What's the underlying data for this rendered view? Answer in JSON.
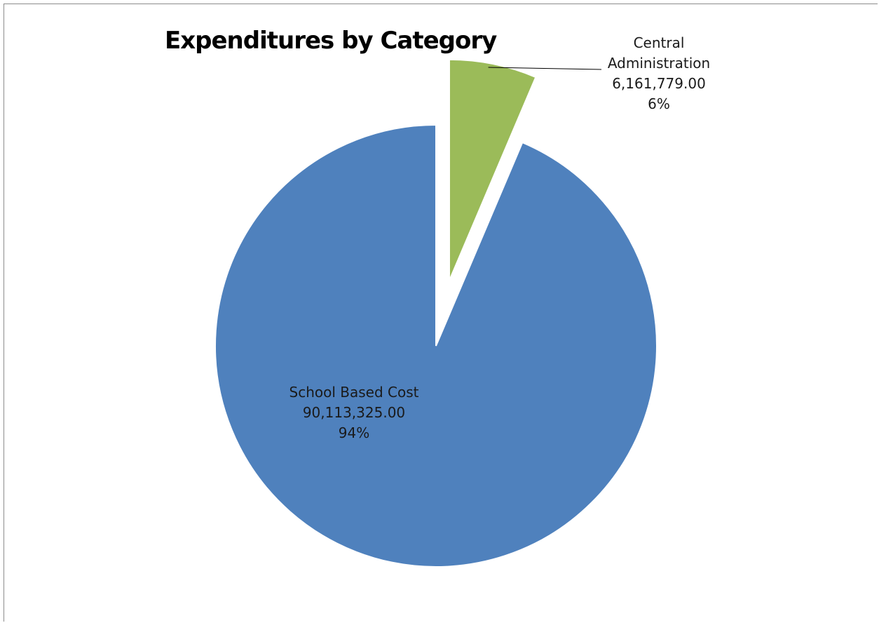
{
  "chart_data": {
    "type": "pie",
    "title": "Expenditures by Category",
    "slices": [
      {
        "name": "Central Administration",
        "name_lines": [
          "Central",
          "Administration"
        ],
        "value": 6161779.0,
        "value_label": "6,161,779.00",
        "percent_label": "6%",
        "color": "#9bbb59",
        "exploded": true
      },
      {
        "name": "School Based Cost",
        "name_lines": [
          "School Based Cost"
        ],
        "value": 90113325.0,
        "value_label": "90,113,325.00",
        "percent_label": "94%",
        "color": "#4f81bd",
        "exploded": false
      }
    ],
    "start_angle_deg": 0,
    "direction": "clockwise",
    "legend": "none"
  }
}
